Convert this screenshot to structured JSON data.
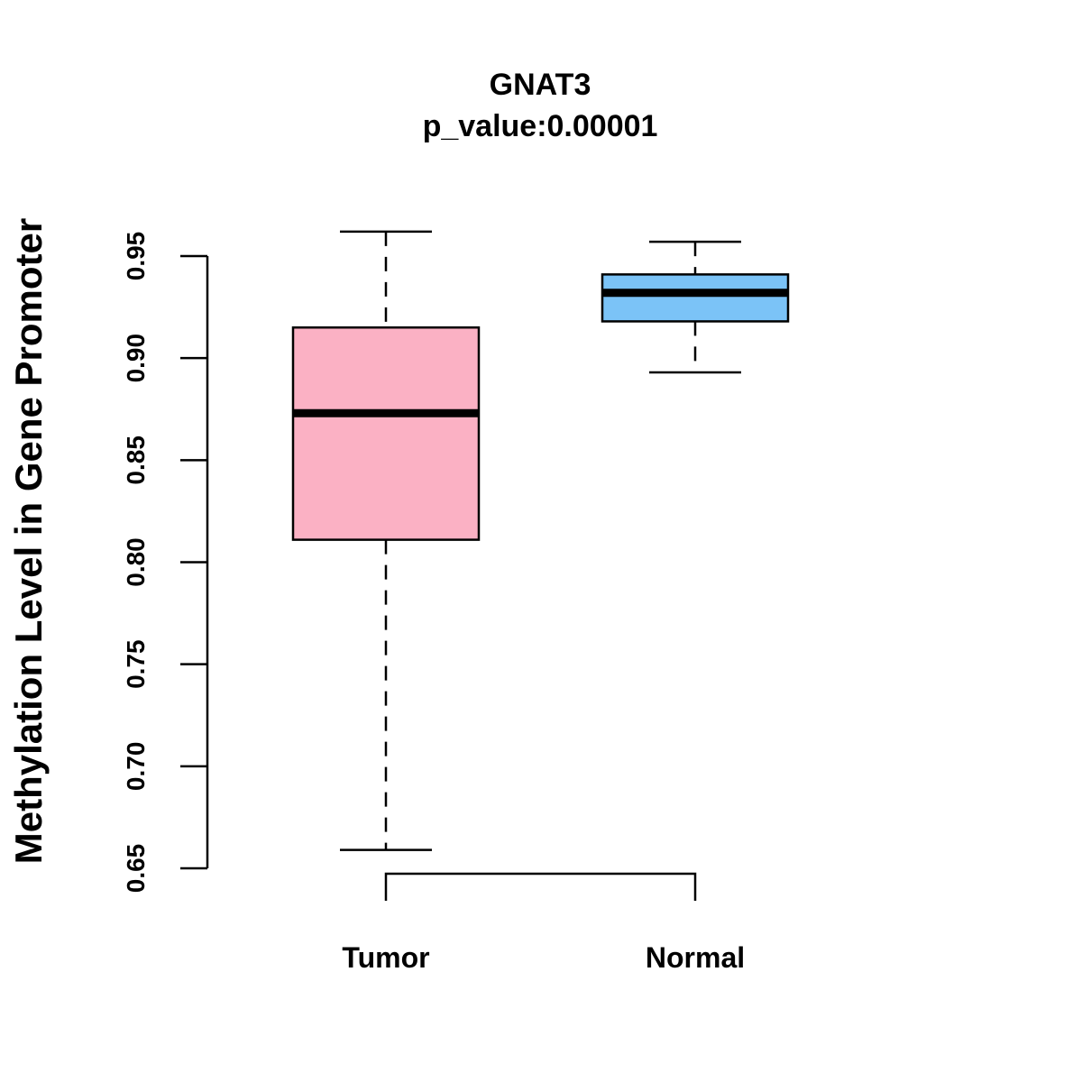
{
  "chart_data": {
    "type": "boxplot",
    "title": "GNAT3",
    "subtitle": "p_value:0.00001",
    "ylabel": "Methylation Level in Gene Promoter",
    "xlabel": "",
    "ylim": [
      0.65,
      0.955
    ],
    "yticks": [
      "0.65",
      "0.70",
      "0.75",
      "0.80",
      "0.85",
      "0.90",
      "0.95"
    ],
    "categories": [
      "Tumor",
      "Normal"
    ],
    "series": [
      {
        "name": "Tumor",
        "color": "#FBB1C4",
        "whisker_low": 0.659,
        "q1": 0.811,
        "median": 0.873,
        "q3": 0.915,
        "whisker_high": 0.962
      },
      {
        "name": "Normal",
        "color": "#7BC3F7",
        "whisker_low": 0.893,
        "q1": 0.918,
        "median": 0.932,
        "q3": 0.941,
        "whisker_high": 0.957
      }
    ],
    "bracket": "Tumor–Normal",
    "grid": false,
    "legend": "none"
  }
}
